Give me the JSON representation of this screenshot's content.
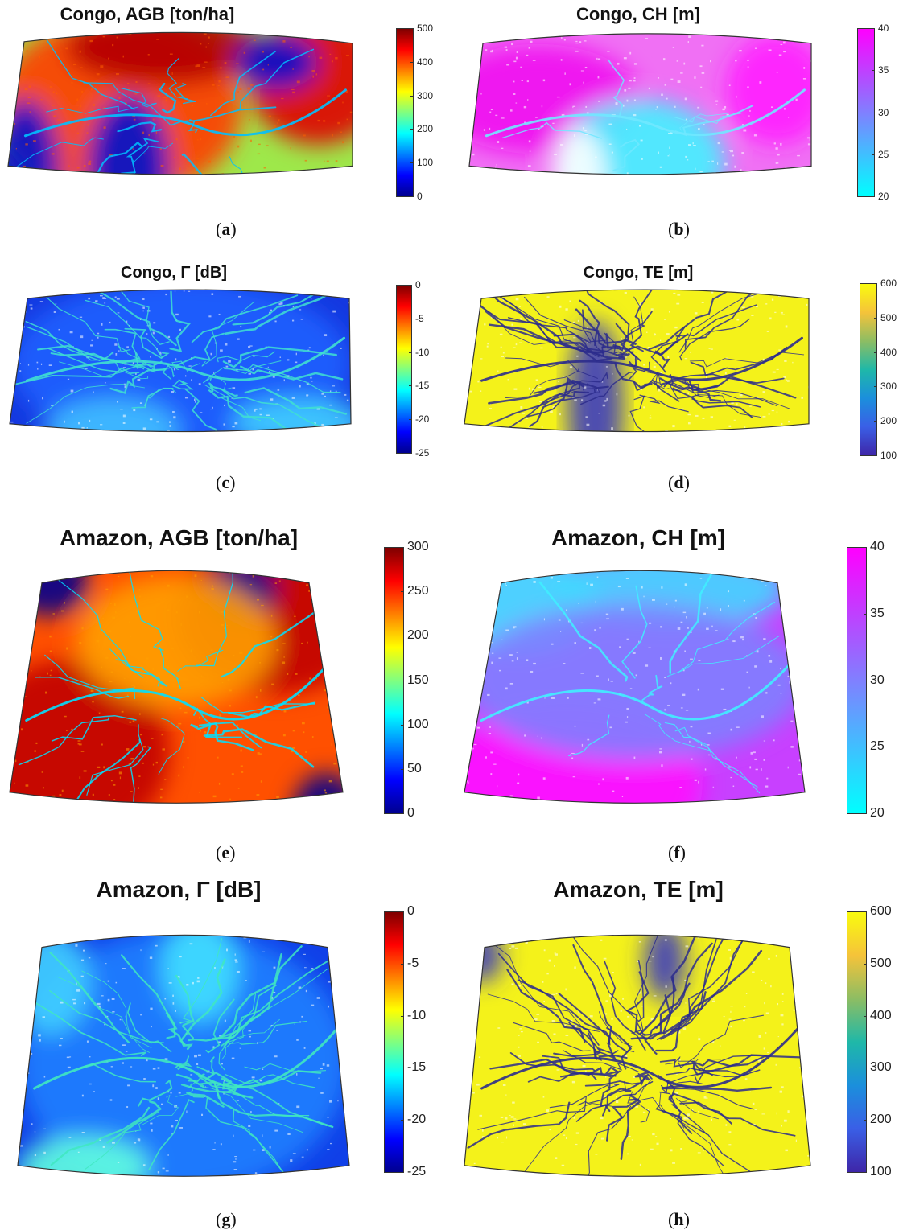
{
  "panels": [
    {
      "id": "a",
      "title": "Congo, AGB [ton/ha]",
      "letter": "a",
      "cmap": "jet",
      "ticks": [
        "500",
        "400",
        "300",
        "200",
        "100",
        "0"
      ],
      "theme": "congo-agb"
    },
    {
      "id": "b",
      "title": "Congo, CH [m]",
      "letter": "b",
      "cmap": "cool",
      "ticks": [
        "40",
        "35",
        "30",
        "25",
        "20"
      ],
      "theme": "congo-ch"
    },
    {
      "id": "c",
      "title": "Congo, Γ [dB]",
      "letter": "c",
      "cmap": "jet",
      "ticks": [
        "0",
        "-5",
        "-10",
        "-15",
        "-20",
        "-25"
      ],
      "theme": "congo-gamma"
    },
    {
      "id": "d",
      "title": "Congo, TE [m]",
      "letter": "d",
      "cmap": "parula",
      "ticks": [
        "600",
        "500",
        "400",
        "300",
        "200",
        "100"
      ],
      "theme": "congo-te"
    },
    {
      "id": "e",
      "title": "Amazon, AGB [ton/ha]",
      "letter": "e",
      "cmap": "jet",
      "ticks": [
        "300",
        "250",
        "200",
        "150",
        "100",
        "50",
        "0"
      ],
      "theme": "amazon-agb"
    },
    {
      "id": "f",
      "title": "Amazon, CH [m]",
      "letter": "f",
      "cmap": "cool",
      "ticks": [
        "40",
        "35",
        "30",
        "25",
        "20"
      ],
      "theme": "amazon-ch"
    },
    {
      "id": "g",
      "title": "Amazon, Γ [dB]",
      "letter": "g",
      "cmap": "jet",
      "ticks": [
        "0",
        "-5",
        "-10",
        "-15",
        "-20",
        "-25"
      ],
      "theme": "amazon-gamma"
    },
    {
      "id": "h",
      "title": "Amazon, TE [m]",
      "letter": "h",
      "cmap": "parula",
      "ticks": [
        "600",
        "500",
        "400",
        "300",
        "200",
        "100"
      ],
      "theme": "amazon-te"
    }
  ],
  "colormaps": {
    "jet": [
      "#7f0000",
      "#ff0000",
      "#ff8000",
      "#ffff00",
      "#80ff80",
      "#00ffff",
      "#0080ff",
      "#0000ff",
      "#00008f"
    ],
    "cool": [
      "#ff00ff",
      "#bf40ff",
      "#8080ff",
      "#40bfff",
      "#00ffff"
    ],
    "parula": [
      "#f9fb0e",
      "#f5c33a",
      "#8dbd63",
      "#1fb8a8",
      "#1b8fdc",
      "#3a5fe6",
      "#3e26a8"
    ]
  }
}
